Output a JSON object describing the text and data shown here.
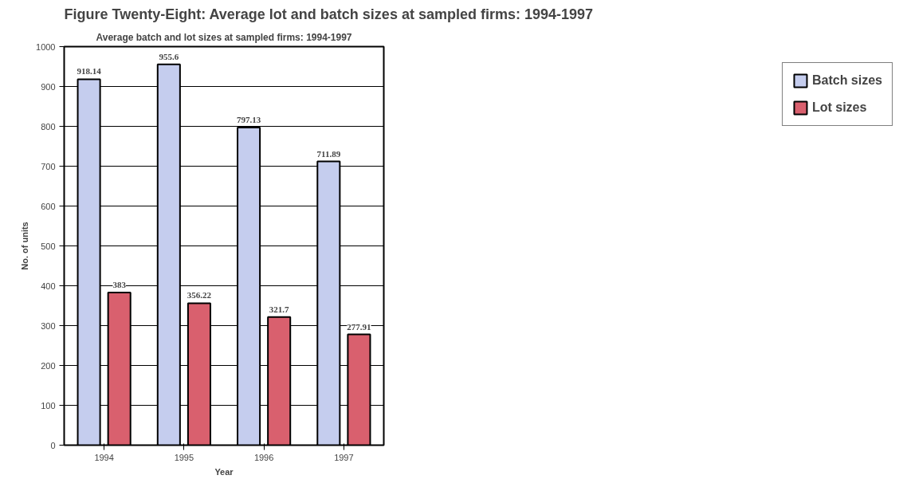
{
  "chart_data": {
    "type": "bar",
    "title": "Figure Twenty-Eight: Average lot and batch sizes at sampled firms: 1994-1997",
    "subtitle": "Average batch and lot sizes at sampled firms: 1994-1997",
    "xlabel": "Year",
    "ylabel": "No. of units",
    "categories": [
      "1994",
      "1995",
      "1996",
      "1997"
    ],
    "series": [
      {
        "name": "Batch sizes",
        "color": "#c5cdee",
        "values": [
          918.14,
          955.6,
          797.13,
          711.89
        ]
      },
      {
        "name": "Lot sizes",
        "color": "#d9606e",
        "values": [
          383,
          356.22,
          321.7,
          277.91
        ]
      }
    ],
    "ylim": [
      0,
      1000
    ],
    "yticks": [
      0,
      100,
      200,
      300,
      400,
      500,
      600,
      700,
      800,
      900,
      1000
    ],
    "grid": "y",
    "legend": "right",
    "data_labels": true
  }
}
